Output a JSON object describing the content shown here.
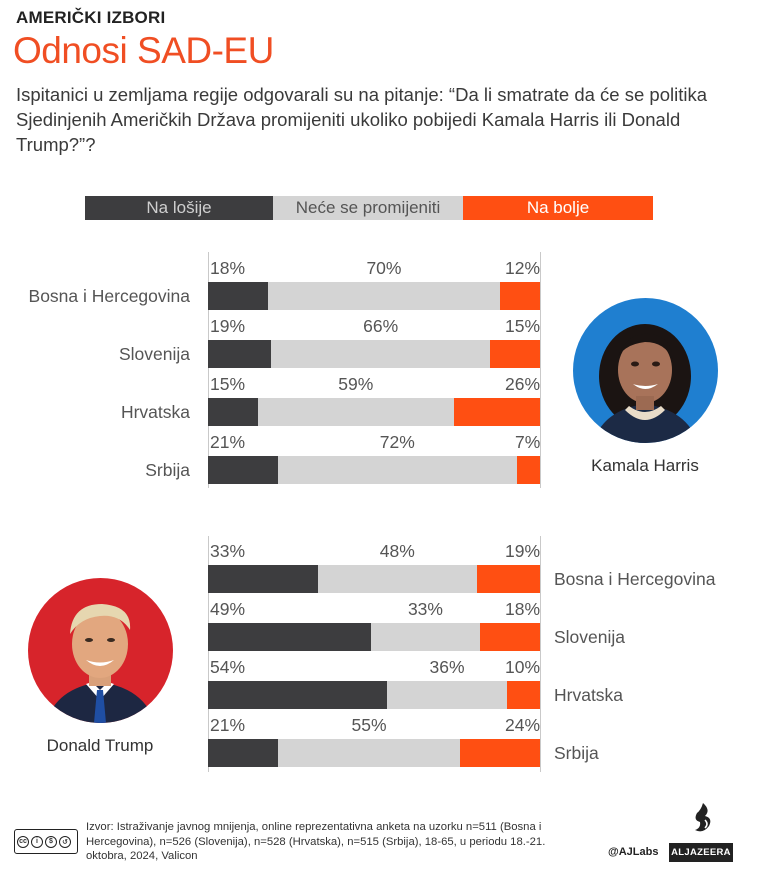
{
  "header": {
    "kicker": "AMERIČKI IZBORI",
    "title": "Odnosi SAD-EU",
    "subtitle": "Ispitanici u zemljama regije odgovarali su na pitanje: “Da li smatrate da će se politika Sjedinjenih Američkih Država promijeniti ukoliko pobijedi Kamala Harris ili Donald Trump?”?"
  },
  "legend": {
    "worse": "Na lošije",
    "same": "Neće se promijeniti",
    "better": "Na bolje"
  },
  "colors": {
    "worse": "#3d3d3f",
    "same": "#d4d4d4",
    "better": "#ff4f12",
    "title": "#f04e23"
  },
  "people": {
    "harris": {
      "name": "Kamala Harris",
      "icon": "kamala-harris-portrait-icon"
    },
    "trump": {
      "name": "Donald Trump",
      "icon": "donald-trump-portrait-icon"
    }
  },
  "chart_data": [
    {
      "type": "bar",
      "stacked": true,
      "orientation": "horizontal",
      "group": "Kamala Harris",
      "categories": [
        "Bosna i Hercegovina",
        "Slovenija",
        "Hrvatska",
        "Srbija"
      ],
      "series": [
        {
          "name": "Na lošije",
          "values": [
            18,
            19,
            15,
            21
          ],
          "labels": [
            "18%",
            "19%",
            "15%",
            "21%"
          ]
        },
        {
          "name": "Neće se promijeniti",
          "values": [
            70,
            66,
            59,
            72
          ],
          "labels": [
            "70%",
            "66%",
            "59%",
            "72%"
          ]
        },
        {
          "name": "Na bolje",
          "values": [
            12,
            15,
            26,
            7
          ],
          "labels": [
            "12%",
            "15%",
            "26%",
            "7%"
          ]
        }
      ],
      "xlim": [
        0,
        100
      ],
      "legend": "top"
    },
    {
      "type": "bar",
      "stacked": true,
      "orientation": "horizontal",
      "group": "Donald Trump",
      "categories": [
        "Bosna i Hercegovina",
        "Slovenija",
        "Hrvatska",
        "Srbija"
      ],
      "series": [
        {
          "name": "Na lošije",
          "values": [
            33,
            49,
            54,
            21
          ],
          "labels": [
            "33%",
            "49%",
            "54%",
            "21%"
          ]
        },
        {
          "name": "Neće se promijeniti",
          "values": [
            48,
            33,
            36,
            55
          ],
          "labels": [
            "48%",
            "33%",
            "36%",
            "55%"
          ]
        },
        {
          "name": "Na bolje",
          "values": [
            19,
            18,
            10,
            24
          ],
          "labels": [
            "19%",
            "18%",
            "10%",
            "24%"
          ]
        }
      ],
      "xlim": [
        0,
        100
      ],
      "legend": "top"
    }
  ],
  "footer": {
    "source": "Izvor: Istraživanje javnog mnijenja, online reprezentativna anketa na uzorku n=511 (Bosna i Hercegovina), n=526 (Slovenija), n=528 (Hrvatska), n=515 (Srbija), 18-65, u periodu 18.-21. oktobra, 2024, Valicon",
    "license_badge": "BY NC SA",
    "credit": "@AJLabs",
    "brand": "ALJAZEERA"
  }
}
